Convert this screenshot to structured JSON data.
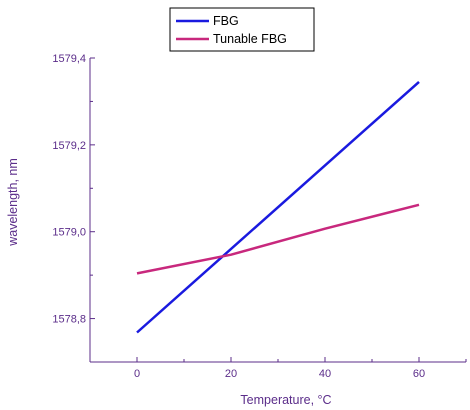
{
  "chart_data": {
    "type": "line",
    "title": "",
    "xlabel": "Temperature, ",
    "xlabel_unit": "°C",
    "ylabel": "wavelength, nm",
    "xlim": [
      -10,
      70
    ],
    "ylim": [
      1578.7,
      1579.4
    ],
    "x_ticks": [
      0,
      20,
      40,
      60
    ],
    "x_tick_labels": [
      "0",
      "20",
      "40",
      "60"
    ],
    "y_ticks": [
      1578.8,
      1579.0,
      1579.2,
      1579.4
    ],
    "y_tick_labels": [
      "1578,8",
      "1579,0",
      "1579,2",
      "1579,4"
    ],
    "grid": false,
    "legend": "top-center",
    "series": [
      {
        "name": "FBG",
        "color": "#1a1adf",
        "x": [
          0,
          60
        ],
        "y": [
          1578.768,
          1579.345
        ]
      },
      {
        "name": "Tunable FBG",
        "color": "#c8287d",
        "x": [
          0,
          20,
          40,
          60
        ],
        "y": [
          1578.904,
          1578.947,
          1579.007,
          1579.062
        ]
      }
    ],
    "axis_color": "#5b2d8a"
  }
}
